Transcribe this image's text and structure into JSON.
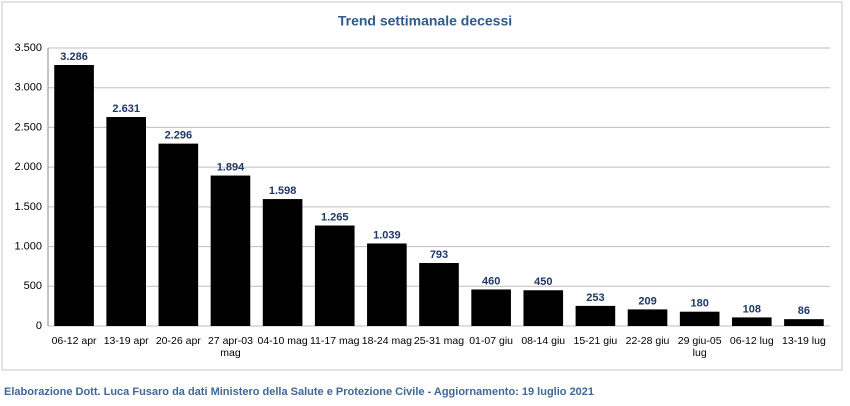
{
  "chart_data": {
    "type": "bar",
    "title": "Trend settimanale decessi",
    "categories": [
      "06-12 apr",
      "13-19 apr",
      "20-26 apr",
      "27 apr-03 mag",
      "04-10 mag",
      "11-17 mag",
      "18-24 mag",
      "25-31 mag",
      "01-07 giu",
      "08-14 giu",
      "15-21 giu",
      "22-28 giu",
      "29 giu-05 lug",
      "06-12 lug",
      "13-19 lug"
    ],
    "values": [
      3286,
      2631,
      2296,
      1894,
      1598,
      1265,
      1039,
      793,
      460,
      450,
      253,
      209,
      180,
      108,
      86
    ],
    "value_labels": [
      "3.286",
      "2.631",
      "2.296",
      "1.894",
      "1.598",
      "1.265",
      "1.039",
      "793",
      "460",
      "450",
      "253",
      "209",
      "180",
      "108",
      "86"
    ],
    "color": "#000000",
    "ylim": [
      0,
      3500
    ],
    "yticks": [
      0,
      500,
      {
        "value": 1000,
        "label": "1.000"
      },
      {
        "value": 1500,
        "label": "1.500"
      },
      {
        "value": 2000,
        "label": "2.000"
      },
      {
        "value": 2500,
        "label": "2.500"
      },
      {
        "value": 3000,
        "label": "3.000"
      },
      {
        "value": 3500,
        "label": "3.500"
      }
    ],
    "grid": true,
    "source": "Elaborazione Dott. Luca Fusaro da dati Ministero della Salute e Protezione Civile - Aggiornamento: 19 luglio 2021"
  }
}
